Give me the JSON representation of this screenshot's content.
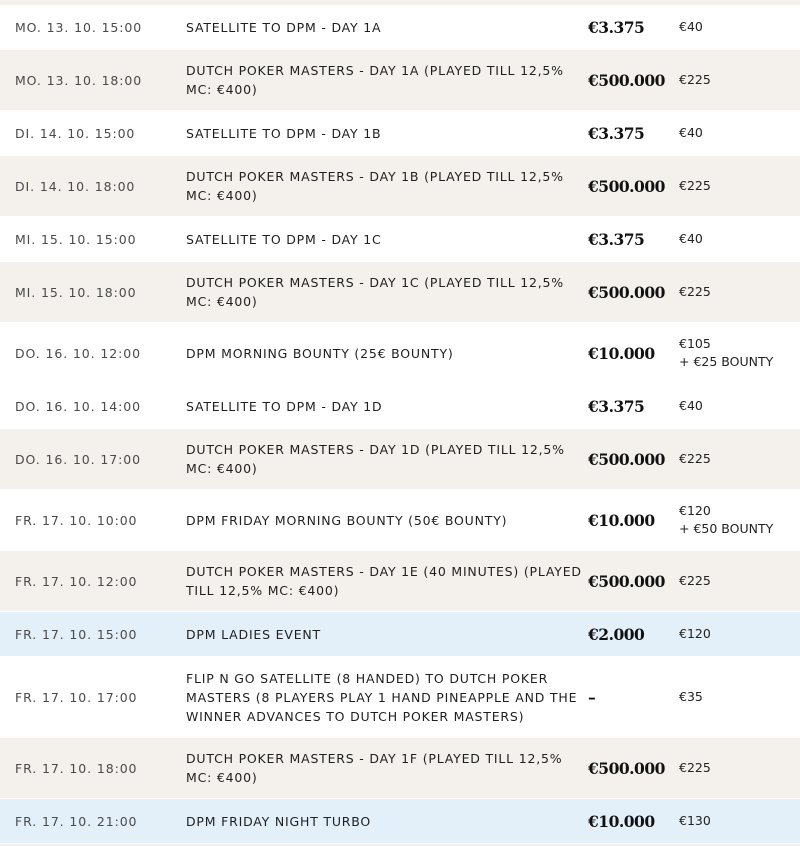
{
  "rows": [
    {
      "date": "MO. 13. 10. 15:00",
      "name": "SATELLITE TO DPM - DAY 1A",
      "prize": "€3.375",
      "buyin": "€40",
      "bounty": "",
      "bg": "white",
      "lines": 1
    },
    {
      "date": "MO. 13. 10. 18:00",
      "name": "DUTCH POKER MASTERS - DAY 1A (PLAYED TILL 12,5% MC: €400)",
      "prize": "€500.000",
      "buyin": "€225",
      "bounty": "",
      "bg": "beige",
      "lines": 2
    },
    {
      "date": "DI. 14. 10. 15:00",
      "name": "SATELLITE TO DPM - DAY 1B",
      "prize": "€3.375",
      "buyin": "€40",
      "bounty": "",
      "bg": "white",
      "lines": 1
    },
    {
      "date": "DI. 14. 10. 18:00",
      "name": "DUTCH POKER MASTERS - DAY 1B (PLAYED TILL 12,5% MC: €400)",
      "prize": "€500.000",
      "buyin": "€225",
      "bounty": "",
      "bg": "beige",
      "lines": 2
    },
    {
      "date": "MI. 15. 10. 15:00",
      "name": "SATELLITE TO DPM - DAY 1C",
      "prize": "€3.375",
      "buyin": "€40",
      "bounty": "",
      "bg": "white",
      "lines": 1
    },
    {
      "date": "MI. 15. 10. 18:00",
      "name": "DUTCH POKER MASTERS - DAY 1C (PLAYED TILL 12,5% MC: €400)",
      "prize": "€500.000",
      "buyin": "€225",
      "bounty": "",
      "bg": "beige",
      "lines": 2
    },
    {
      "date": "DO. 16. 10. 12:00",
      "name": "DPM MORNING BOUNTY (25€ BOUNTY)",
      "prize": "€10.000",
      "buyin": "€105",
      "bounty": "+ €25 BOUNTY",
      "bg": "white",
      "lines": 2
    },
    {
      "date": "DO. 16. 10. 14:00",
      "name": "SATELLITE TO DPM - DAY 1D",
      "prize": "€3.375",
      "buyin": "€40",
      "bounty": "",
      "bg": "white",
      "lines": 1
    },
    {
      "date": "DO. 16. 10. 17:00",
      "name": "DUTCH POKER MASTERS - DAY 1D (PLAYED TILL 12,5% MC: €400)",
      "prize": "€500.000",
      "buyin": "€225",
      "bounty": "",
      "bg": "beige",
      "lines": 2
    },
    {
      "date": "FR. 17. 10. 10:00",
      "name": "DPM FRIDAY MORNING BOUNTY (50€ BOUNTY)",
      "prize": "€10.000",
      "buyin": "€120",
      "bounty": "+ €50 BOUNTY",
      "bg": "white",
      "lines": 2
    },
    {
      "date": "FR. 17. 10. 12:00",
      "name": "DUTCH POKER MASTERS - DAY 1E (40 MINUTES) (PLAYED TILL 12,5% MC: €400)",
      "prize": "€500.000",
      "buyin": "€225",
      "bounty": "",
      "bg": "beige",
      "lines": 2
    },
    {
      "date": "FR. 17. 10. 15:00",
      "name": "DPM LADIES EVENT",
      "prize": "€2.000",
      "buyin": "€120",
      "bounty": "",
      "bg": "blue",
      "lines": 1
    },
    {
      "date": "FR. 17. 10. 17:00",
      "name": "FLIP N GO SATELLITE (8 HANDED) TO DUTCH POKER MASTERS (8 PLAYERS PLAY 1 HAND PINEAPPLE AND THE WINNER ADVANCES TO DUTCH POKER MASTERS)",
      "prize": "–",
      "buyin": "€35",
      "bounty": "",
      "bg": "white",
      "lines": 3
    },
    {
      "date": "FR. 17. 10. 18:00",
      "name": "DUTCH POKER MASTERS - DAY 1F (PLAYED TILL 12,5% MC: €400)",
      "prize": "€500.000",
      "buyin": "€225",
      "bounty": "",
      "bg": "beige",
      "lines": 2
    },
    {
      "date": "FR. 17. 10. 21:00",
      "name": "DPM FRIDAY NIGHT TURBO",
      "prize": "€10.000",
      "buyin": "€130",
      "bounty": "",
      "bg": "blue",
      "lines": 1
    }
  ]
}
